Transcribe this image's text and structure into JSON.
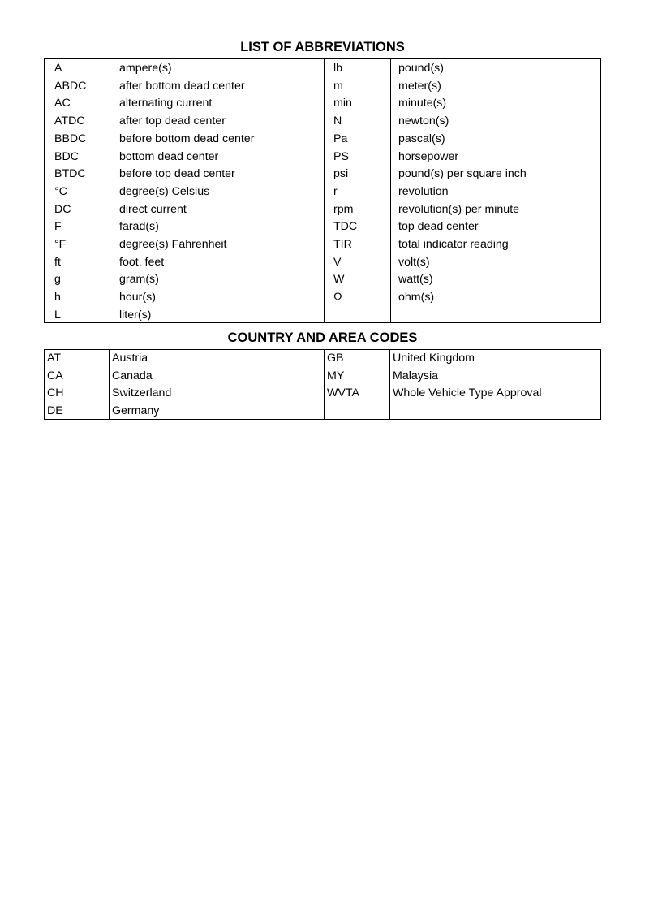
{
  "abbreviations": {
    "title": "LIST OF ABBREVIATIONS",
    "left": [
      [
        "A",
        "ampere(s)"
      ],
      [
        "ABDC",
        "after bottom dead center"
      ],
      [
        "AC",
        "alternating current"
      ],
      [
        "ATDC",
        "after top dead center"
      ],
      [
        "BBDC",
        "before bottom dead center"
      ],
      [
        "BDC",
        "bottom dead center"
      ],
      [
        "BTDC",
        "before top dead center"
      ],
      [
        "°C",
        "degree(s) Celsius"
      ],
      [
        "DC",
        "direct current"
      ],
      [
        "F",
        "farad(s)"
      ],
      [
        "°F",
        "degree(s) Fahrenheit"
      ],
      [
        "ft",
        "foot, feet"
      ],
      [
        "g",
        "gram(s)"
      ],
      [
        "h",
        "hour(s)"
      ],
      [
        "L",
        "liter(s)"
      ]
    ],
    "right": [
      [
        "lb",
        "pound(s)"
      ],
      [
        "m",
        "meter(s)"
      ],
      [
        "min",
        "minute(s)"
      ],
      [
        "N",
        "newton(s)"
      ],
      [
        "Pa",
        "pascal(s)"
      ],
      [
        "PS",
        "horsepower"
      ],
      [
        "psi",
        "pound(s) per square inch"
      ],
      [
        "r",
        "revolution"
      ],
      [
        "rpm",
        "revolution(s) per minute"
      ],
      [
        "TDC",
        "top dead center"
      ],
      [
        "TIR",
        "total indicator reading"
      ],
      [
        "V",
        "volt(s)"
      ],
      [
        "W",
        "watt(s)"
      ],
      [
        "Ω",
        "ohm(s)"
      ]
    ]
  },
  "country_codes": {
    "title": "COUNTRY AND AREA CODES",
    "left": [
      [
        "AT",
        "Austria"
      ],
      [
        "CA",
        "Canada"
      ],
      [
        "CH",
        "Switzerland"
      ],
      [
        "DE",
        "Germany"
      ]
    ],
    "right": [
      [
        "GB",
        "United Kingdom"
      ],
      [
        "MY",
        "Malaysia"
      ],
      [
        "WVTA",
        "Whole Vehicle Type Approval"
      ]
    ]
  }
}
